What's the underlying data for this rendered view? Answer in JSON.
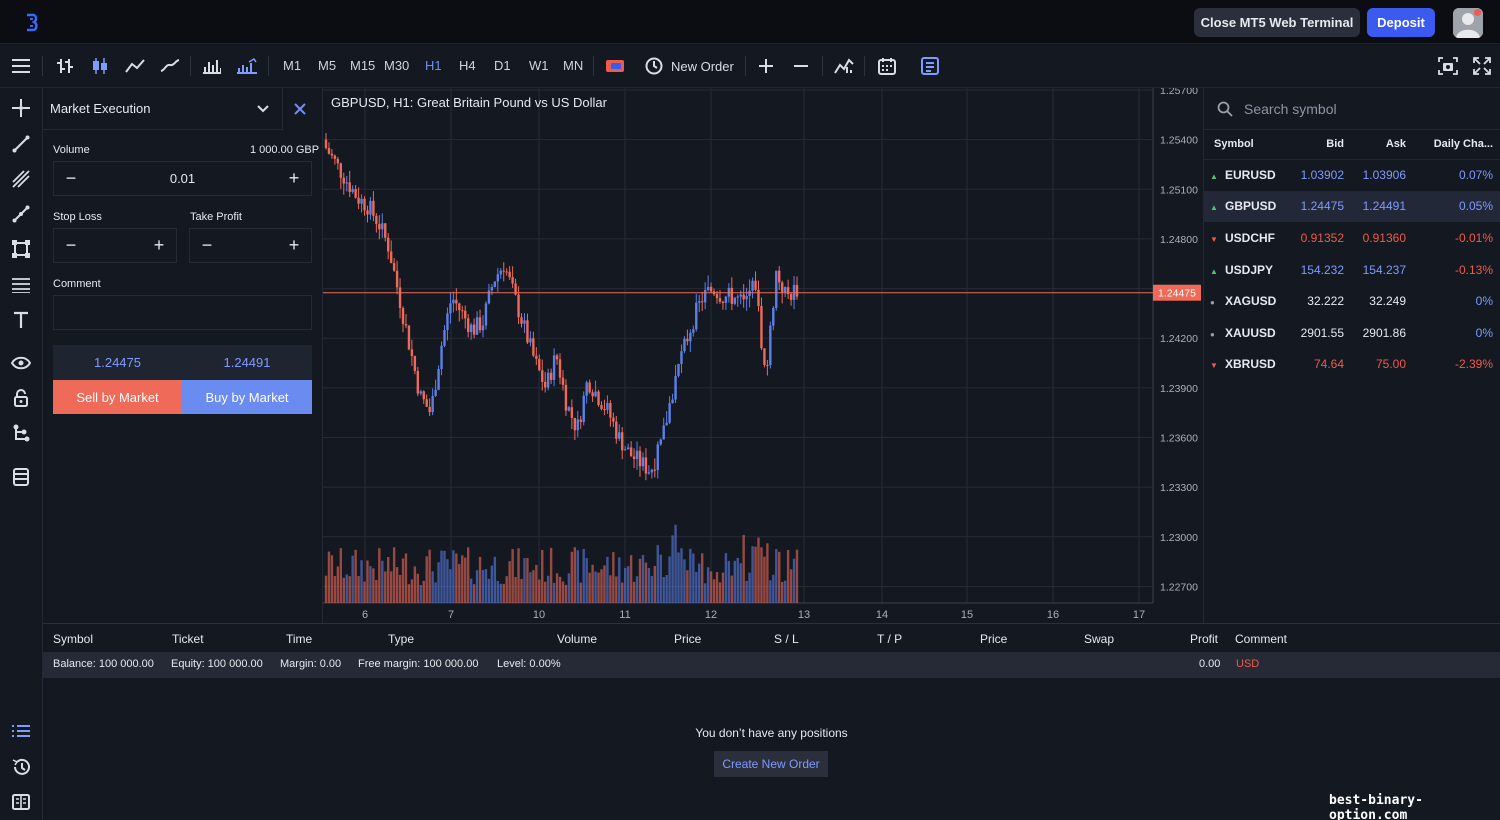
{
  "topbar": {
    "close_terminal_label": "Close MT5 Web Terminal",
    "deposit_label": "Deposit"
  },
  "toolbar": {
    "timeframes": [
      "M1",
      "M5",
      "M15",
      "M30",
      "H1",
      "H4",
      "D1",
      "W1",
      "MN"
    ],
    "active_timeframe": "H1",
    "new_order_label": "New Order"
  },
  "order_panel": {
    "execution_type": "Market Execution",
    "volume_label": "Volume",
    "volume_amount": "1 000.00 GBP",
    "volume_value": "0.01",
    "stop_loss_label": "Stop Loss",
    "take_profit_label": "Take Profit",
    "comment_label": "Comment",
    "bid": "1.24475",
    "ask": "1.24491",
    "sell_label": "Sell by Market",
    "buy_label": "Buy by Market"
  },
  "chart": {
    "title": "GBPUSD, H1: Great Britain Pound vs US Dollar",
    "current_price_label": "1.24475"
  },
  "chart_data": {
    "type": "candlestick",
    "title": "GBPUSD, H1: Great Britain Pound vs US Dollar",
    "symbol": "GBPUSD",
    "timeframe": "H1",
    "x_tick_labels": [
      "6",
      "7",
      "10",
      "11",
      "12",
      "13",
      "14",
      "15",
      "16",
      "17"
    ],
    "y_tick_labels": [
      "1.25700",
      "1.25400",
      "1.25100",
      "1.24800",
      "1.24500",
      "1.24200",
      "1.23900",
      "1.23600",
      "1.23300",
      "1.23000",
      "1.22700"
    ],
    "ylim": [
      1.226,
      1.257
    ],
    "current_price": 1.24475,
    "approx_close_path": [
      1.2535,
      1.2525,
      1.2515,
      1.2505,
      1.25,
      1.249,
      1.2475,
      1.2445,
      1.2415,
      1.2385,
      1.2375,
      1.2415,
      1.2445,
      1.2435,
      1.2425,
      1.243,
      1.2455,
      1.2465,
      1.2445,
      1.2425,
      1.2405,
      1.239,
      1.241,
      1.238,
      1.2365,
      1.2395,
      1.2385,
      1.2375,
      1.236,
      1.235,
      1.2345,
      1.234,
      1.2355,
      1.2385,
      1.241,
      1.243,
      1.2445,
      1.245,
      1.2445,
      1.2445,
      1.244,
      1.2455,
      1.2395,
      1.246,
      1.2445,
      1.245
    ],
    "grid": true
  },
  "market_watch": {
    "search_placeholder": "Search symbol",
    "columns": [
      "Symbol",
      "Bid",
      "Ask",
      "Daily Cha..."
    ],
    "rows": [
      {
        "symbol": "EURUSD",
        "bid": "1.03902",
        "ask": "1.03906",
        "change": "0.07%",
        "dir": "up",
        "price_color": "#7e9bff",
        "change_color": "#7e9bff"
      },
      {
        "symbol": "GBPUSD",
        "bid": "1.24475",
        "ask": "1.24491",
        "change": "0.05%",
        "dir": "up",
        "price_color": "#7e9bff",
        "change_color": "#7e9bff"
      },
      {
        "symbol": "USDCHF",
        "bid": "0.91352",
        "ask": "0.91360",
        "change": "-0.01%",
        "dir": "down",
        "price_color": "#ef5b4a",
        "change_color": "#ef5b4a"
      },
      {
        "symbol": "USDJPY",
        "bid": "154.232",
        "ask": "154.237",
        "change": "-0.13%",
        "dir": "up",
        "price_color": "#7e9bff",
        "change_color": "#ef5b4a"
      },
      {
        "symbol": "XAGUSD",
        "bid": "32.222",
        "ask": "32.249",
        "change": "0%",
        "dir": "flat",
        "price_color": "#e6e9ef",
        "change_color": "#7e9bff"
      },
      {
        "symbol": "XAUUSD",
        "bid": "2901.55",
        "ask": "2901.86",
        "change": "0%",
        "dir": "flat",
        "price_color": "#e6e9ef",
        "change_color": "#7e9bff"
      },
      {
        "symbol": "XBRUSD",
        "bid": "74.64",
        "ask": "75.00",
        "change": "-2.39%",
        "dir": "down",
        "price_color": "#ef5b4a",
        "change_color": "#ef5b4a"
      }
    ],
    "selected_symbol": "GBPUSD"
  },
  "positions": {
    "columns": [
      "Symbol",
      "Ticket",
      "Time",
      "Type",
      "Volume",
      "Price",
      "S / L",
      "T / P",
      "Price",
      "Swap",
      "Profit",
      "Comment"
    ],
    "balance": "Balance: 100 000.00",
    "equity": "Equity: 100 000.00",
    "margin": "Margin: 0.00",
    "free_margin": "Free margin: 100 000.00",
    "level": "Level: 0.00%",
    "profit": "0.00",
    "currency": "USD",
    "empty_message": "You don’t have any positions",
    "create_order_label": "Create New Order"
  },
  "watermark": "best-binary-option.com",
  "colors": {
    "bull": "#5c80e8",
    "bear": "#ef6a58",
    "accent": "#3b5bf0",
    "price_line": "#ef6a58"
  }
}
